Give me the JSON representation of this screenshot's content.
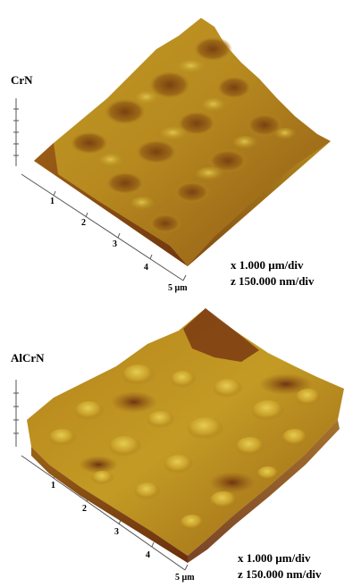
{
  "panels": [
    {
      "sample": "CrN",
      "ticks": [
        "1",
        "2",
        "3",
        "4",
        "5 µm"
      ],
      "scale_x": "x 1.000 µm/div",
      "scale_z": "z 150.000 nm/div"
    },
    {
      "sample": "AlCrN",
      "ticks": [
        "1",
        "2",
        "3",
        "4",
        "5 µm"
      ],
      "scale_x": "x 1.000 µm/div",
      "scale_z": "z 150.000 nm/div"
    }
  ],
  "colors": {
    "surface_light": "#c9a41f",
    "surface_mid": "#a7741a",
    "surface_dark": "#6e3410",
    "axis": "#555555"
  }
}
